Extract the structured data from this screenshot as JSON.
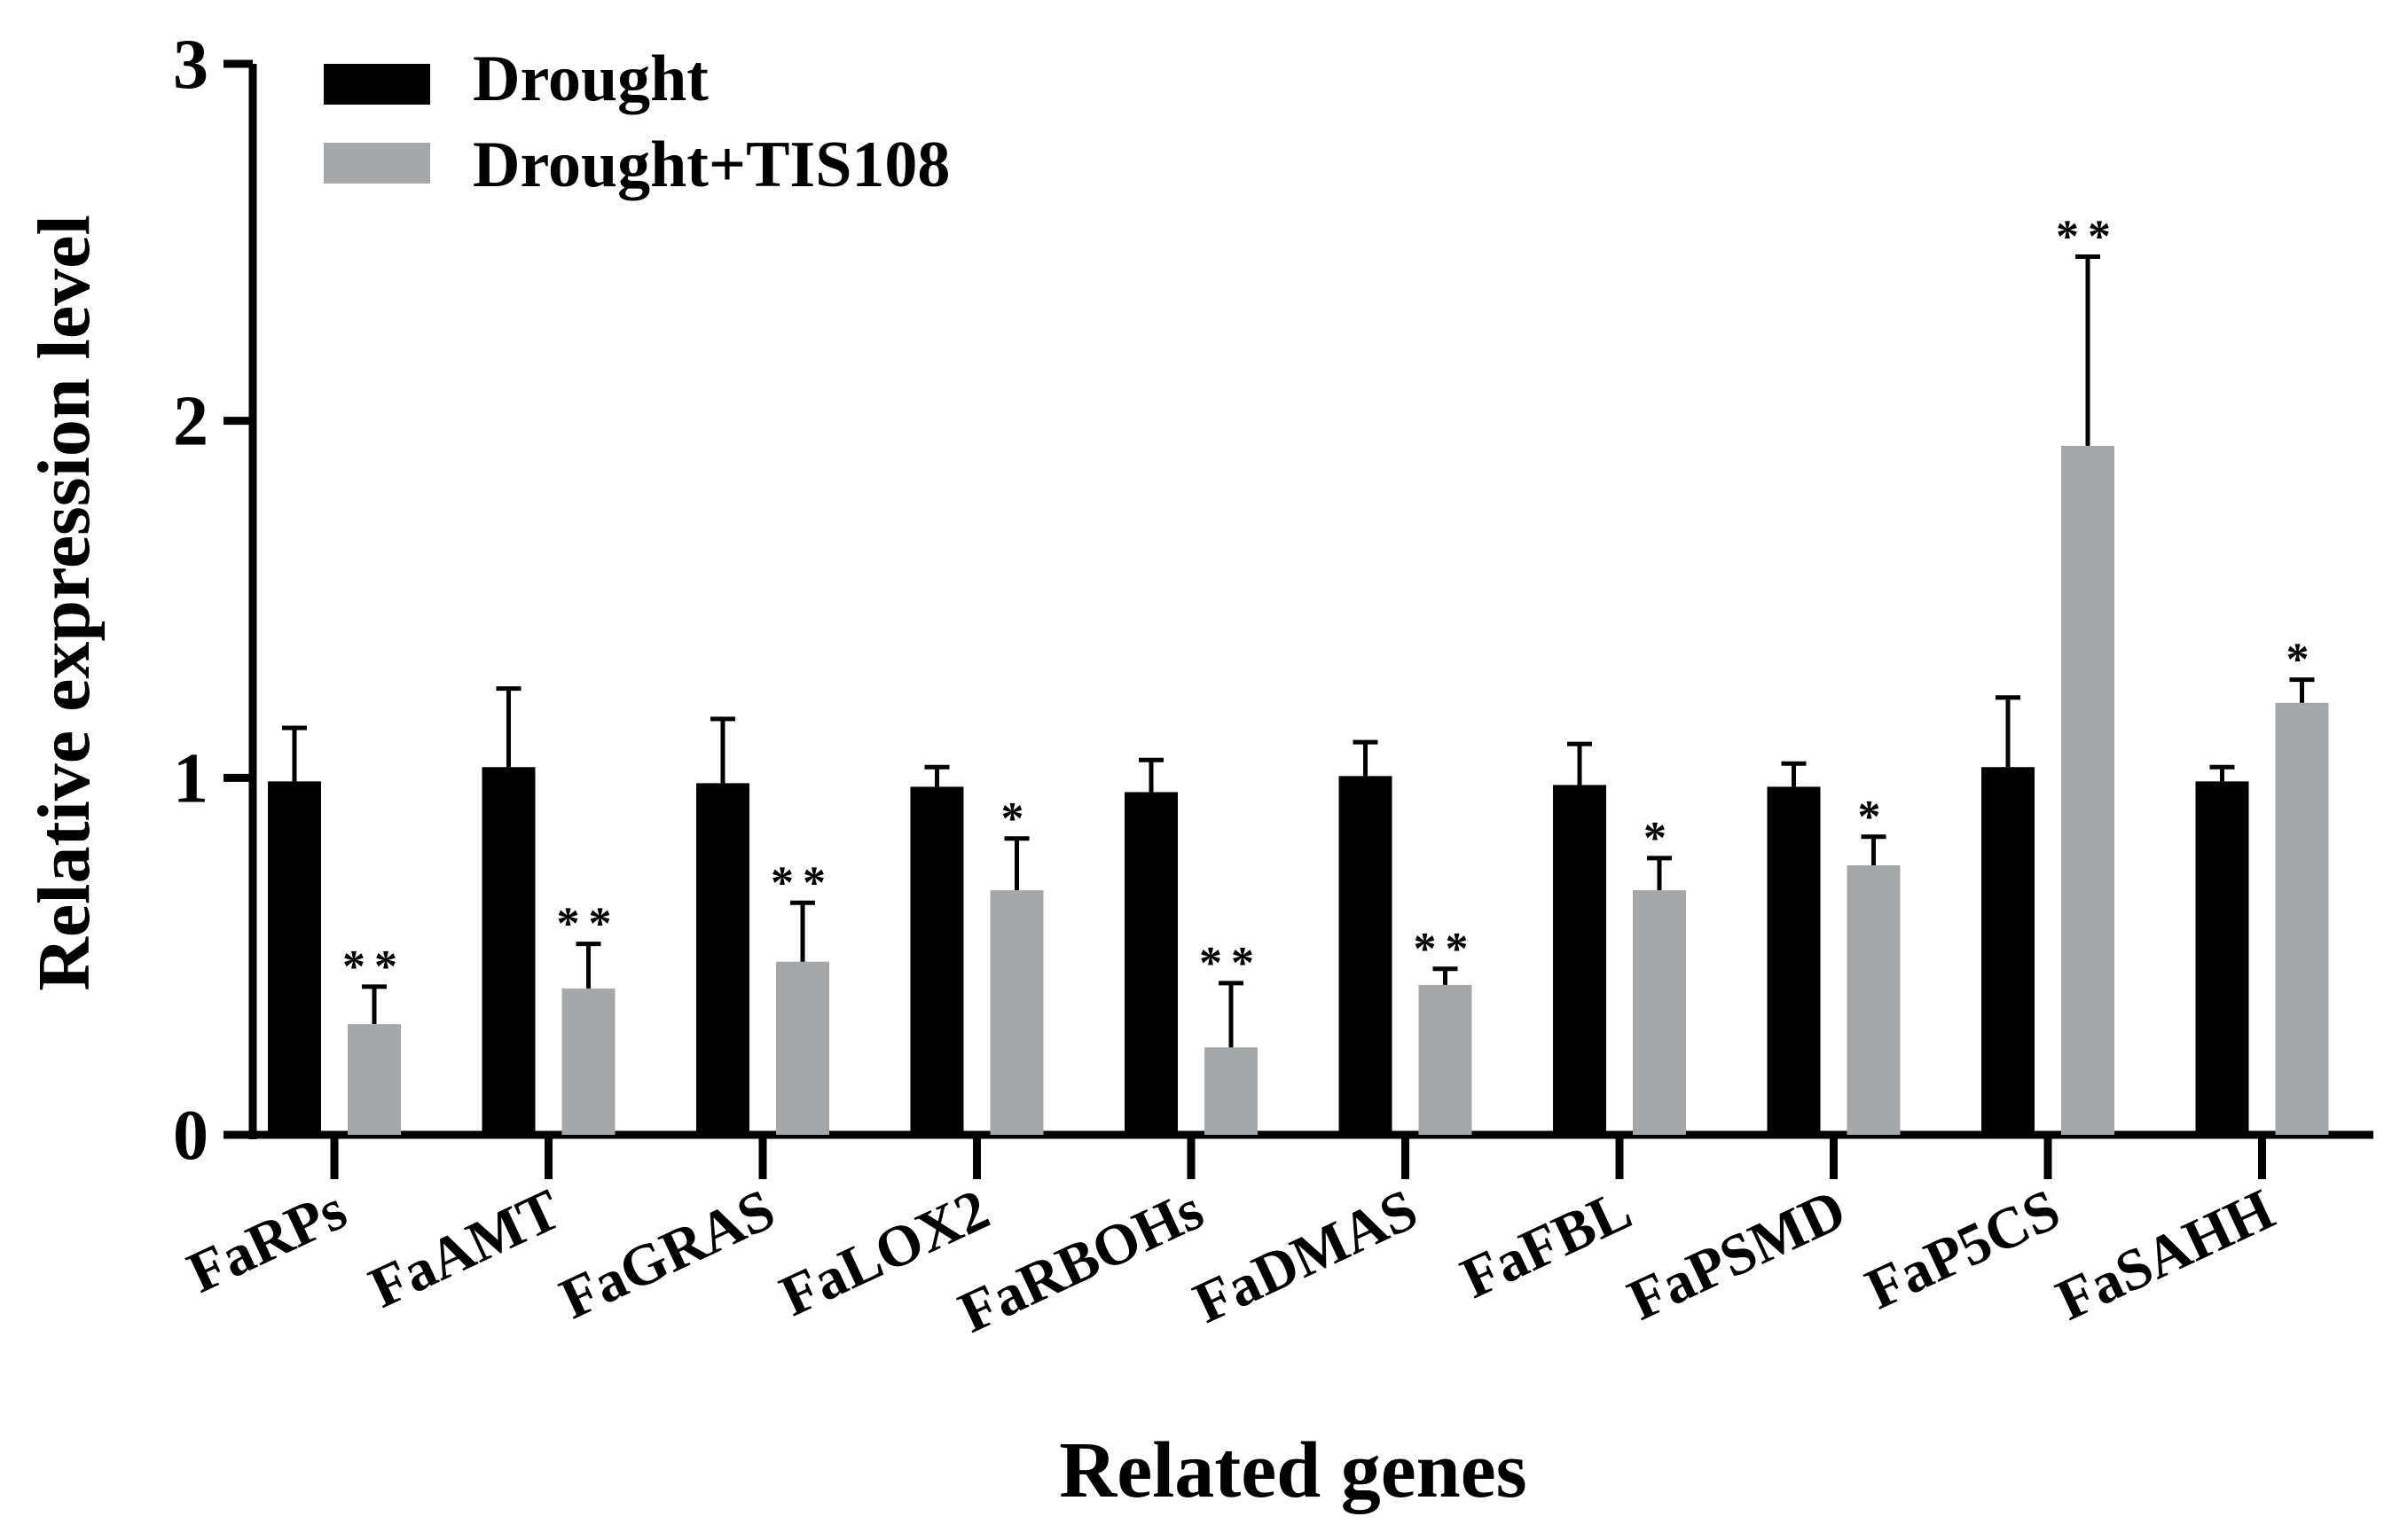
{
  "chart_data": {
    "type": "bar",
    "title": "",
    "xlabel": "Related genes",
    "ylabel": "Relative expression level",
    "ylim": [
      0,
      3
    ],
    "yticks": [
      0,
      1,
      2,
      3
    ],
    "ytick_labels": [
      "0",
      "1",
      "2",
      "3"
    ],
    "legend_position": "top-left",
    "categories": [
      "FaRPs",
      "FaAMT",
      "FaGRAS",
      "FaLOX2",
      "FaRBOHs",
      "FaDMAS",
      "FaFBL",
      "FaPSMD",
      "FaP5CS",
      "FaSAHH"
    ],
    "series": [
      {
        "name": "Drought",
        "color": "#000000",
        "values": [
          0.99,
          1.03,
          0.985,
          0.975,
          0.96,
          1.005,
          0.98,
          0.975,
          1.03,
          0.99
        ],
        "errors": [
          0.15,
          0.22,
          0.18,
          0.055,
          0.09,
          0.095,
          0.115,
          0.065,
          0.195,
          0.04
        ],
        "significance": [
          "",
          "",
          "",
          "",
          "",
          "",
          "",
          "",
          "",
          ""
        ]
      },
      {
        "name": "Drought+TIS108",
        "color": "#a6a7a9",
        "values": [
          0.31,
          0.41,
          0.485,
          0.685,
          0.245,
          0.42,
          0.685,
          0.755,
          1.93,
          1.21
        ],
        "errors": [
          0.105,
          0.125,
          0.165,
          0.145,
          0.18,
          0.045,
          0.09,
          0.08,
          0.53,
          0.065
        ],
        "significance": [
          "**",
          "**",
          "**",
          "*",
          "**",
          "**",
          "*",
          "*",
          "**",
          "*"
        ]
      }
    ]
  }
}
